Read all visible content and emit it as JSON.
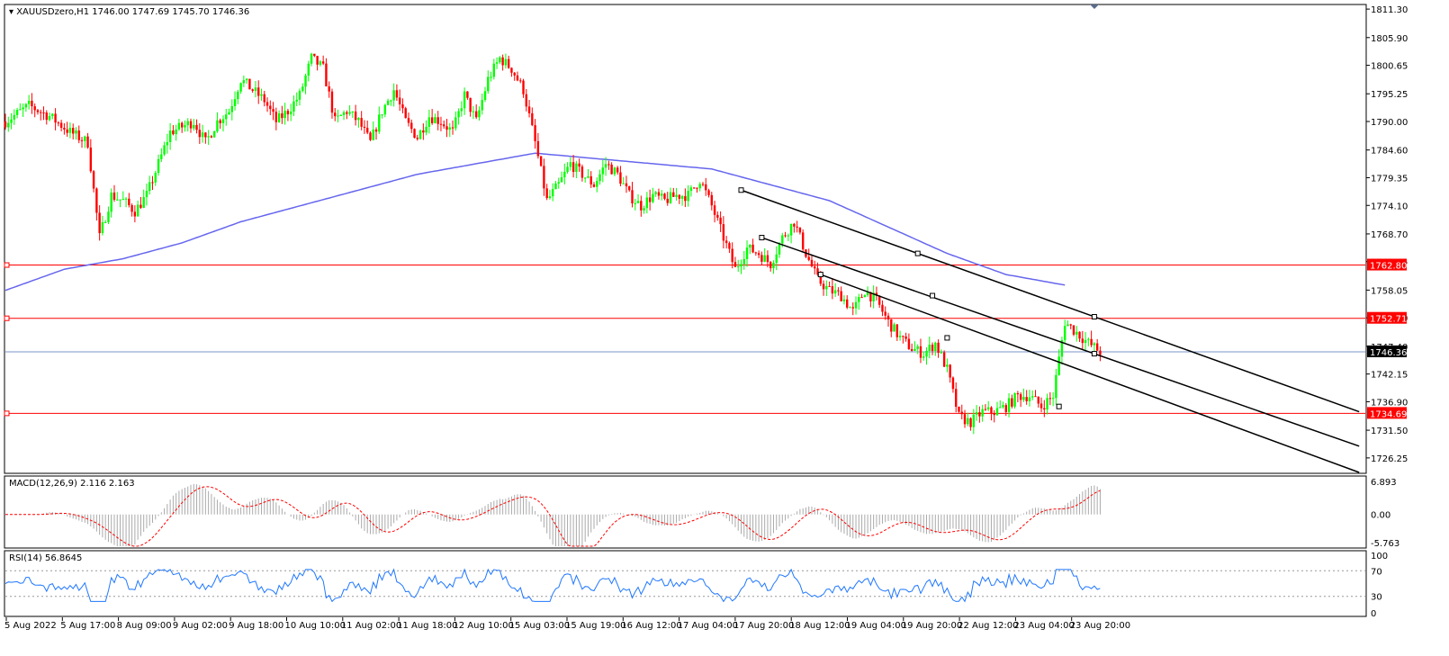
{
  "header": {
    "symbol": "XAUUSDzero,H1",
    "ohlc": "1746.00 1747.69 1745.70 1746.36"
  },
  "chart_data": {
    "type": "candlestick",
    "symbol": "XAUUSDzero",
    "timeframe": "H1",
    "price_axis": {
      "range": [
        1723.5,
        1812
      ],
      "ticks": [
        "1811.30",
        "1805.90",
        "1800.65",
        "1795.25",
        "1790.00",
        "1784.60",
        "1779.35",
        "1774.10",
        "1768.70",
        "1763.45",
        "1758.05",
        "1752.80",
        "1747.40",
        "1742.15",
        "1736.90",
        "1731.50",
        "1726.25"
      ]
    },
    "time_axis": {
      "ticks": [
        "5 Aug 2022",
        "5 Aug 17:00",
        "8 Aug 09:00",
        "9 Aug 02:00",
        "9 Aug 18:00",
        "10 Aug 10:00",
        "11 Aug 02:00",
        "11 Aug 18:00",
        "12 Aug 10:00",
        "15 Aug 03:00",
        "15 Aug 19:00",
        "16 Aug 12:00",
        "17 Aug 04:00",
        "17 Aug 20:00",
        "18 Aug 12:00",
        "19 Aug 04:00",
        "19 Aug 20:00",
        "22 Aug 12:00",
        "23 Aug 04:00",
        "23 Aug 20:00"
      ]
    },
    "current_price": {
      "value": 1746.36,
      "label": "1746.36",
      "color": "#1e3a8a"
    },
    "horizontal_levels": [
      {
        "value": 1762.8,
        "label": "1762.80",
        "color": "#ff0000"
      },
      {
        "value": 1752.71,
        "label": "1752.71",
        "color": "#ff0000"
      },
      {
        "value": 1734.69,
        "label": "1734.69",
        "color": "#ff0000"
      }
    ],
    "candle_colors": {
      "up": "#00ff00",
      "down": "#ff0000"
    },
    "price_path": [
      [
        0,
        1790
      ],
      [
        8,
        1793
      ],
      [
        15,
        1791
      ],
      [
        22,
        1788
      ],
      [
        28,
        1786
      ],
      [
        32,
        1768
      ],
      [
        36,
        1776
      ],
      [
        40,
        1775
      ],
      [
        44,
        1773
      ],
      [
        48,
        1776
      ],
      [
        52,
        1782
      ],
      [
        56,
        1788
      ],
      [
        60,
        1789
      ],
      [
        64,
        1790
      ],
      [
        68,
        1786
      ],
      [
        72,
        1790
      ],
      [
        76,
        1792
      ],
      [
        80,
        1798
      ],
      [
        84,
        1796
      ],
      [
        88,
        1794
      ],
      [
        92,
        1790
      ],
      [
        96,
        1792
      ],
      [
        100,
        1795
      ],
      [
        104,
        1802
      ],
      [
        108,
        1800
      ],
      [
        112,
        1790
      ],
      [
        116,
        1792
      ],
      [
        120,
        1790
      ],
      [
        124,
        1786
      ],
      [
        128,
        1792
      ],
      [
        132,
        1796
      ],
      [
        136,
        1790
      ],
      [
        140,
        1787
      ],
      [
        144,
        1791
      ],
      [
        148,
        1790
      ],
      [
        152,
        1788
      ],
      [
        156,
        1795
      ],
      [
        160,
        1790
      ],
      [
        164,
        1798
      ],
      [
        168,
        1802
      ],
      [
        172,
        1800
      ],
      [
        176,
        1796
      ],
      [
        180,
        1786
      ],
      [
        184,
        1775
      ],
      [
        188,
        1778
      ],
      [
        192,
        1782
      ],
      [
        196,
        1780
      ],
      [
        200,
        1778
      ],
      [
        204,
        1782
      ],
      [
        208,
        1780
      ],
      [
        212,
        1776
      ],
      [
        216,
        1774
      ],
      [
        220,
        1776
      ],
      [
        224,
        1775
      ],
      [
        228,
        1776
      ],
      [
        232,
        1776
      ],
      [
        236,
        1779
      ],
      [
        240,
        1774
      ],
      [
        244,
        1768
      ],
      [
        248,
        1762
      ],
      [
        252,
        1766
      ],
      [
        256,
        1765
      ],
      [
        260,
        1763
      ],
      [
        264,
        1768
      ],
      [
        268,
        1771
      ],
      [
        272,
        1765
      ],
      [
        276,
        1760
      ],
      [
        280,
        1758
      ],
      [
        284,
        1757
      ],
      [
        288,
        1754
      ],
      [
        292,
        1758
      ],
      [
        296,
        1756
      ],
      [
        300,
        1752
      ],
      [
        304,
        1749
      ],
      [
        308,
        1747
      ],
      [
        312,
        1746
      ],
      [
        316,
        1748
      ],
      [
        320,
        1743
      ],
      [
        324,
        1734
      ],
      [
        328,
        1733
      ],
      [
        332,
        1735
      ],
      [
        336,
        1735
      ],
      [
        340,
        1736
      ],
      [
        344,
        1738
      ],
      [
        348,
        1738
      ],
      [
        352,
        1736
      ],
      [
        356,
        1738
      ],
      [
        360,
        1752
      ],
      [
        364,
        1750
      ],
      [
        368,
        1748
      ],
      [
        372,
        1746.36
      ]
    ],
    "ma_path": [
      [
        0,
        1758
      ],
      [
        20,
        1762
      ],
      [
        40,
        1764
      ],
      [
        60,
        1767
      ],
      [
        80,
        1771
      ],
      [
        100,
        1774
      ],
      [
        120,
        1777
      ],
      [
        140,
        1780
      ],
      [
        160,
        1782
      ],
      [
        180,
        1784
      ],
      [
        200,
        1783
      ],
      [
        220,
        1782
      ],
      [
        240,
        1781
      ],
      [
        260,
        1778
      ],
      [
        280,
        1775
      ],
      [
        300,
        1770
      ],
      [
        320,
        1765
      ],
      [
        340,
        1761
      ],
      [
        360,
        1759
      ]
    ],
    "ma_color": "#6666ee",
    "trendlines": [
      {
        "p1": [
          250,
          1777
        ],
        "p2": [
          370,
          1753
        ],
        "extend_to": 460
      },
      {
        "p1": [
          257,
          1768
        ],
        "p2": [
          370,
          1746
        ],
        "extend_to": 460
      },
      {
        "p1": [
          277,
          1761
        ],
        "p2": [
          370,
          1738
        ],
        "extend_to": 460
      }
    ],
    "trendline_anchors": [
      [
        250,
        1777
      ],
      [
        310,
        1765
      ],
      [
        315,
        1757
      ],
      [
        370,
        1753
      ],
      [
        257,
        1768
      ],
      [
        370,
        1746
      ],
      [
        277,
        1761
      ],
      [
        320,
        1749
      ],
      [
        358,
        1736
      ]
    ],
    "macd": {
      "label": "MACD(12,26,9) 2.116 2.163",
      "range": [
        -6.5,
        7.5
      ],
      "ticks": [
        "6.893",
        "0.00",
        "-5.763"
      ],
      "histogram_color": "#aaaaaa",
      "signal_color": "#ff0000"
    },
    "rsi": {
      "label": "RSI(14) 56.8645",
      "range": [
        0,
        100
      ],
      "ticks": [
        "100",
        "70",
        "30",
        "0"
      ],
      "levels": [
        70,
        30
      ],
      "color": "#1f77ff"
    }
  }
}
